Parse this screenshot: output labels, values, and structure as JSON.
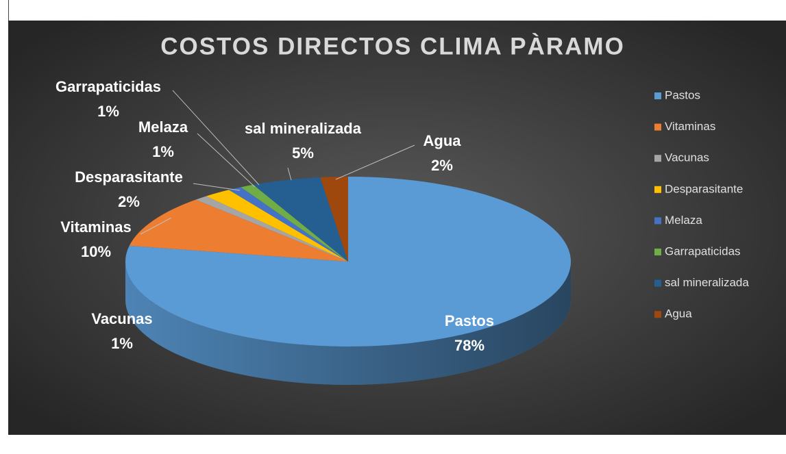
{
  "chart_data": {
    "type": "pie3d",
    "title": "COSTOS  DIRECTOS CLIMA PÀRAMO",
    "categories": [
      "Pastos",
      "Vitaminas",
      "Vacunas",
      "Desparasitante",
      "Melaza",
      "Garrapaticidas",
      "sal mineralizada",
      "Agua"
    ],
    "values": [
      78,
      10,
      1,
      2,
      1,
      1,
      5,
      2
    ],
    "value_labels": [
      "78%",
      "10%",
      "1%",
      "2%",
      "1%",
      "1%",
      "5%",
      "2%"
    ],
    "colors": [
      "#5b9bd5",
      "#ed7d31",
      "#a5a5a5",
      "#ffc000",
      "#4472c4",
      "#70ad47",
      "#255e91",
      "#9e480e"
    ],
    "legend": "right"
  }
}
